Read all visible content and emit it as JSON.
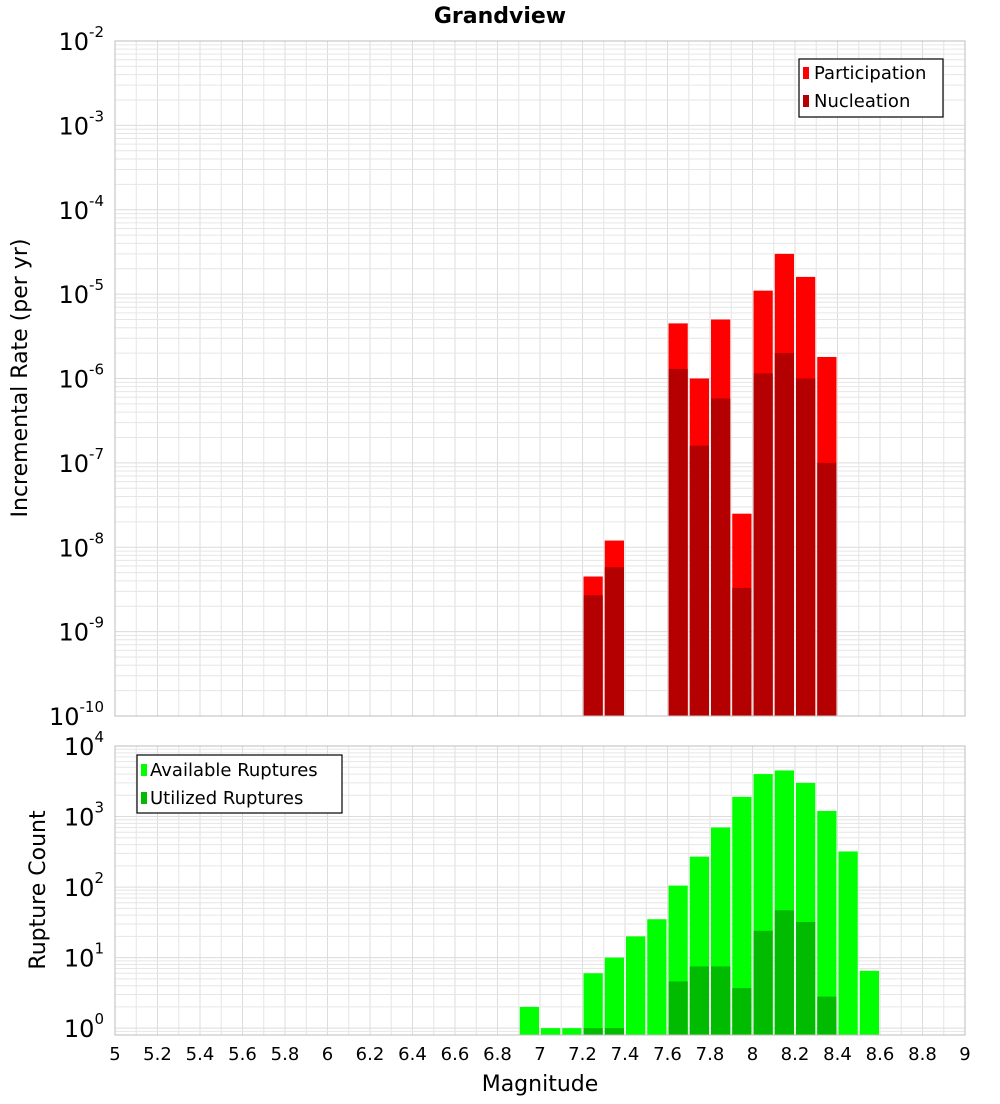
{
  "chart_data": [
    {
      "type": "bar",
      "title": "Grandview",
      "xlabel": "",
      "ylabel": "Incremental Rate (per yr)",
      "yscale": "log",
      "xlim": [
        5,
        9
      ],
      "ylim": [
        1e-10,
        0.01
      ],
      "y_tick_exponents": [
        "-10",
        "-9",
        "-8",
        "-7",
        "-6",
        "-5",
        "-4",
        "-3",
        "-2"
      ],
      "bin_width": 0.1,
      "legend_position": "top-right",
      "grid": true,
      "series": [
        {
          "name": "Participation",
          "color": "#ff0000",
          "x": [
            7.25,
            7.35,
            7.65,
            7.75,
            7.85,
            7.95,
            8.05,
            8.15,
            8.25,
            8.35
          ],
          "values": [
            4.5e-09,
            1.2e-08,
            4.5e-06,
            1e-06,
            5e-06,
            2.5e-08,
            1.1e-05,
            3e-05,
            1.6e-05,
            1.8e-06
          ]
        },
        {
          "name": "Nucleation",
          "color": "#b40000",
          "x": [
            7.25,
            7.35,
            7.65,
            7.75,
            7.85,
            7.95,
            8.05,
            8.15,
            8.25,
            8.35
          ],
          "values": [
            2.7e-09,
            5.8e-09,
            1.3e-06,
            1.6e-07,
            5.8e-07,
            3.3e-09,
            1.15e-06,
            2e-06,
            1e-06,
            1e-07
          ]
        }
      ]
    },
    {
      "type": "bar",
      "title": "",
      "xlabel": "Magnitude",
      "ylabel": "Rupture Count",
      "yscale": "log",
      "xlim": [
        5,
        9
      ],
      "ylim": [
        0.8,
        10000
      ],
      "y_tick_exponents": [
        "0",
        "1",
        "2",
        "3",
        "4"
      ],
      "x_ticks": [
        "5",
        "5.2",
        "5.4",
        "5.6",
        "5.8",
        "6",
        "6.2",
        "6.4",
        "6.6",
        "6.8",
        "7",
        "7.2",
        "7.4",
        "7.6",
        "7.8",
        "8",
        "8.2",
        "8.4",
        "8.6",
        "8.8",
        "9"
      ],
      "bin_width": 0.1,
      "legend_position": "top-left",
      "grid": true,
      "series": [
        {
          "name": "Available Ruptures",
          "color": "#00ff00",
          "x": [
            6.95,
            7.05,
            7.15,
            7.25,
            7.35,
            7.45,
            7.55,
            7.65,
            7.75,
            7.85,
            7.95,
            8.05,
            8.15,
            8.25,
            8.35,
            8.45,
            8.55
          ],
          "values": [
            2,
            1,
            1,
            6,
            10,
            20,
            35,
            105,
            270,
            700,
            1900,
            4000,
            4500,
            3000,
            1200,
            320,
            6.5
          ]
        },
        {
          "name": "Utilized Ruptures",
          "color": "#00bb00",
          "x": [
            7.25,
            7.35,
            7.65,
            7.75,
            7.85,
            7.95,
            8.05,
            8.15,
            8.25,
            8.35
          ],
          "values": [
            1,
            1,
            4.6,
            7.5,
            7.5,
            3.7,
            24,
            47,
            32,
            2.8
          ]
        }
      ]
    }
  ]
}
